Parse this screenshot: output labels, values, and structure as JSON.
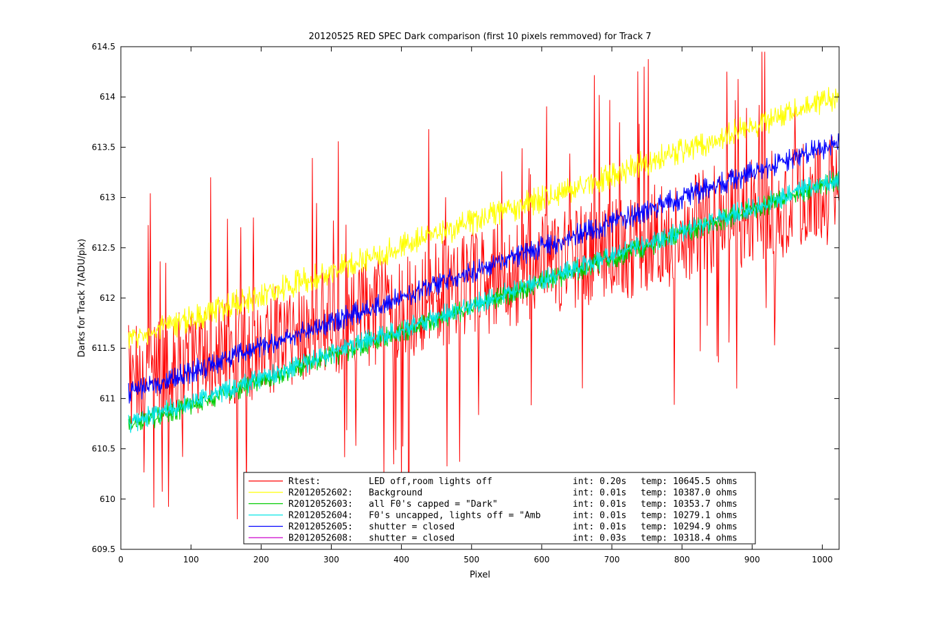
{
  "chart_data": {
    "type": "line",
    "title": "20120525 RED SPEC Dark comparison (first 10 pixels remmoved) for Track 7",
    "xlabel": "Pixel",
    "ylabel": "Darks for Track 7(ADU/pix)",
    "xlim": [
      0,
      1024
    ],
    "ylim": [
      609.5,
      614.5
    ],
    "xticks": [
      "0",
      "100",
      "200",
      "300",
      "400",
      "500",
      "600",
      "700",
      "800",
      "900",
      "1000"
    ],
    "yticks": [
      "609.5",
      "610",
      "610.5",
      "611",
      "611.5",
      "612",
      "612.5",
      "613",
      "613.5",
      "614",
      "614.5"
    ],
    "grid": false,
    "legend_position": "bottom-center",
    "series": [
      {
        "name": "Rtest:",
        "desc": "LED off,room lights off",
        "int": "int: 0.20s",
        "temp": "temp: 10645.5 ohms",
        "color": "#ff0000",
        "x_range": [
          11,
          1024
        ],
        "start": 611.2,
        "end": 613.1,
        "noise": 0.55,
        "spike_min": 609.8,
        "spike_max": 614.45
      },
      {
        "name": "R2012052602:",
        "desc": "Background",
        "int": "int: 0.01s",
        "temp": "temp: 10387.0 ohms",
        "color": "#ffff00",
        "x_range": [
          11,
          1024
        ],
        "start": 611.58,
        "end": 614.0,
        "noise": 0.1
      },
      {
        "name": "R2012052603:",
        "desc": "all F0's capped = \"Dark\"",
        "int": "int: 0.01s",
        "temp": "temp: 10353.7 ohms",
        "color": "#00cc00",
        "x_range": [
          11,
          1024
        ],
        "start": 610.72,
        "end": 613.18,
        "noise": 0.07
      },
      {
        "name": "R2012052604:",
        "desc": "F0's uncapped, lights off = \"Amb",
        "int": "int: 0.01s",
        "temp": "temp: 10279.1 ohms",
        "color": "#00e5e5",
        "x_range": [
          11,
          1024
        ],
        "start": 610.75,
        "end": 613.2,
        "noise": 0.07
      },
      {
        "name": "R2012052605:",
        "desc": "shutter = closed",
        "int": "int: 0.01s",
        "temp": "temp: 10294.9 ohms",
        "color": "#0000ff",
        "x_range": [
          11,
          1024
        ],
        "start": 611.05,
        "end": 613.55,
        "noise": 0.08
      },
      {
        "name": "B2012052608:",
        "desc": "shutter = closed",
        "int": "int: 0.03s",
        "temp": "temp: 10318.4 ohms",
        "color": "#cc00cc",
        "x_range": [],
        "start": null,
        "end": null,
        "noise": 0
      }
    ]
  }
}
